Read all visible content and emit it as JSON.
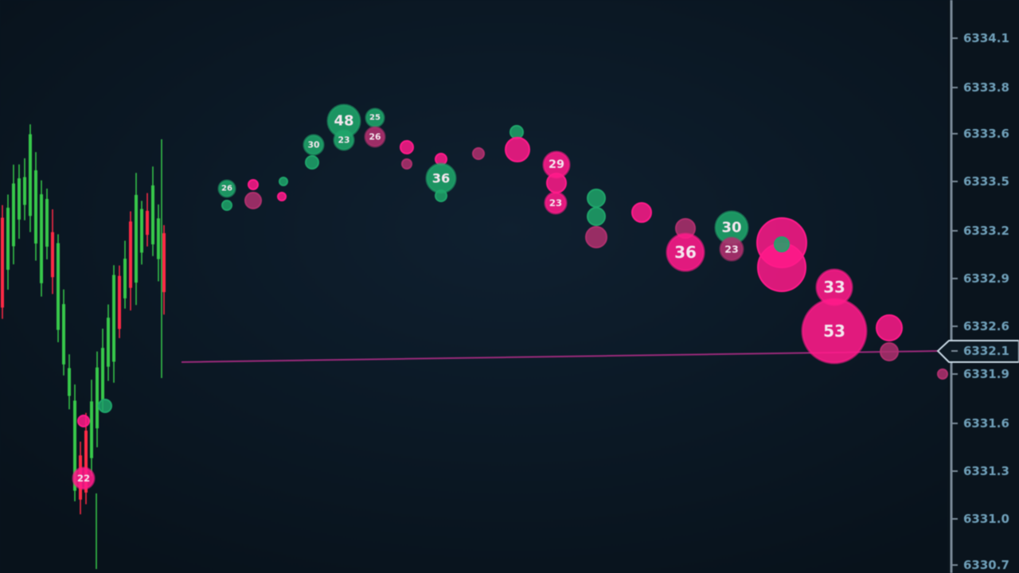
{
  "bubble_labels": [
    "48",
    "23",
    "25",
    "26",
    "30",
    "26",
    "36",
    "29",
    "23",
    "30",
    "36",
    "23",
    "33",
    "53",
    "22"
  ],
  "price_axis": {
    "labels": [
      "6334.1",
      "6333.8",
      "6333.6",
      "6333.5",
      "6333.2",
      "6332.9",
      "6332.6",
      "6332.1",
      "6331.9",
      "6331.6",
      "6331.3",
      "6331.0",
      "6330.7"
    ]
  }
}
